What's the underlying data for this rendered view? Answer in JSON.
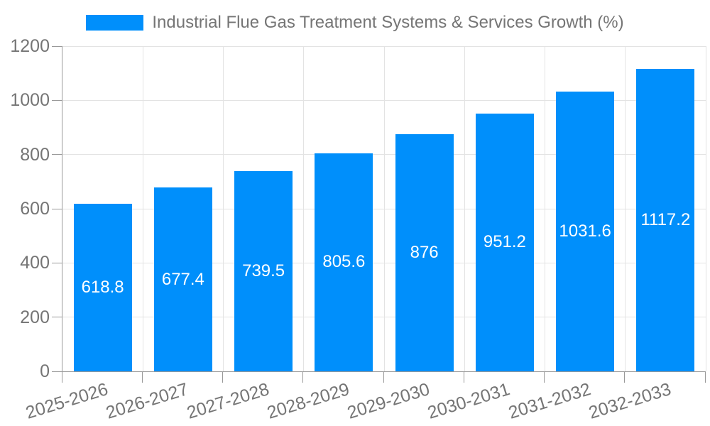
{
  "legend": {
    "label": "Industrial Flue Gas Treatment Systems & Services Growth (%)"
  },
  "chart_data": {
    "type": "bar",
    "title": "Industrial Flue Gas Treatment Systems & Services Growth (%)",
    "series_name": "Industrial Flue Gas Treatment Systems & Services Growth (%)",
    "categories": [
      "2025-2026",
      "2026-2027",
      "2027-2028",
      "2028-2029",
      "2029-2030",
      "2030-2031",
      "2031-2032",
      "2032-2033"
    ],
    "values": [
      618.8,
      677.4,
      739.5,
      805.6,
      876,
      951.2,
      1031.6,
      1117.2
    ],
    "xlabel": "",
    "ylabel": "",
    "ylim": [
      0,
      1200
    ],
    "yticks": [
      0,
      200,
      400,
      600,
      800,
      1000,
      1200
    ],
    "grid": true,
    "legend_position": "top-center",
    "value_labels": "inside-center",
    "x_label_rotation_deg": -17,
    "colors": {
      "bar": "#008FFB",
      "grid": "#e3e3e3",
      "axis": "#999999",
      "tick_text": "#757575",
      "legend_text": "#757575",
      "value_label_text": "#ffffff",
      "background": "#ffffff"
    }
  }
}
